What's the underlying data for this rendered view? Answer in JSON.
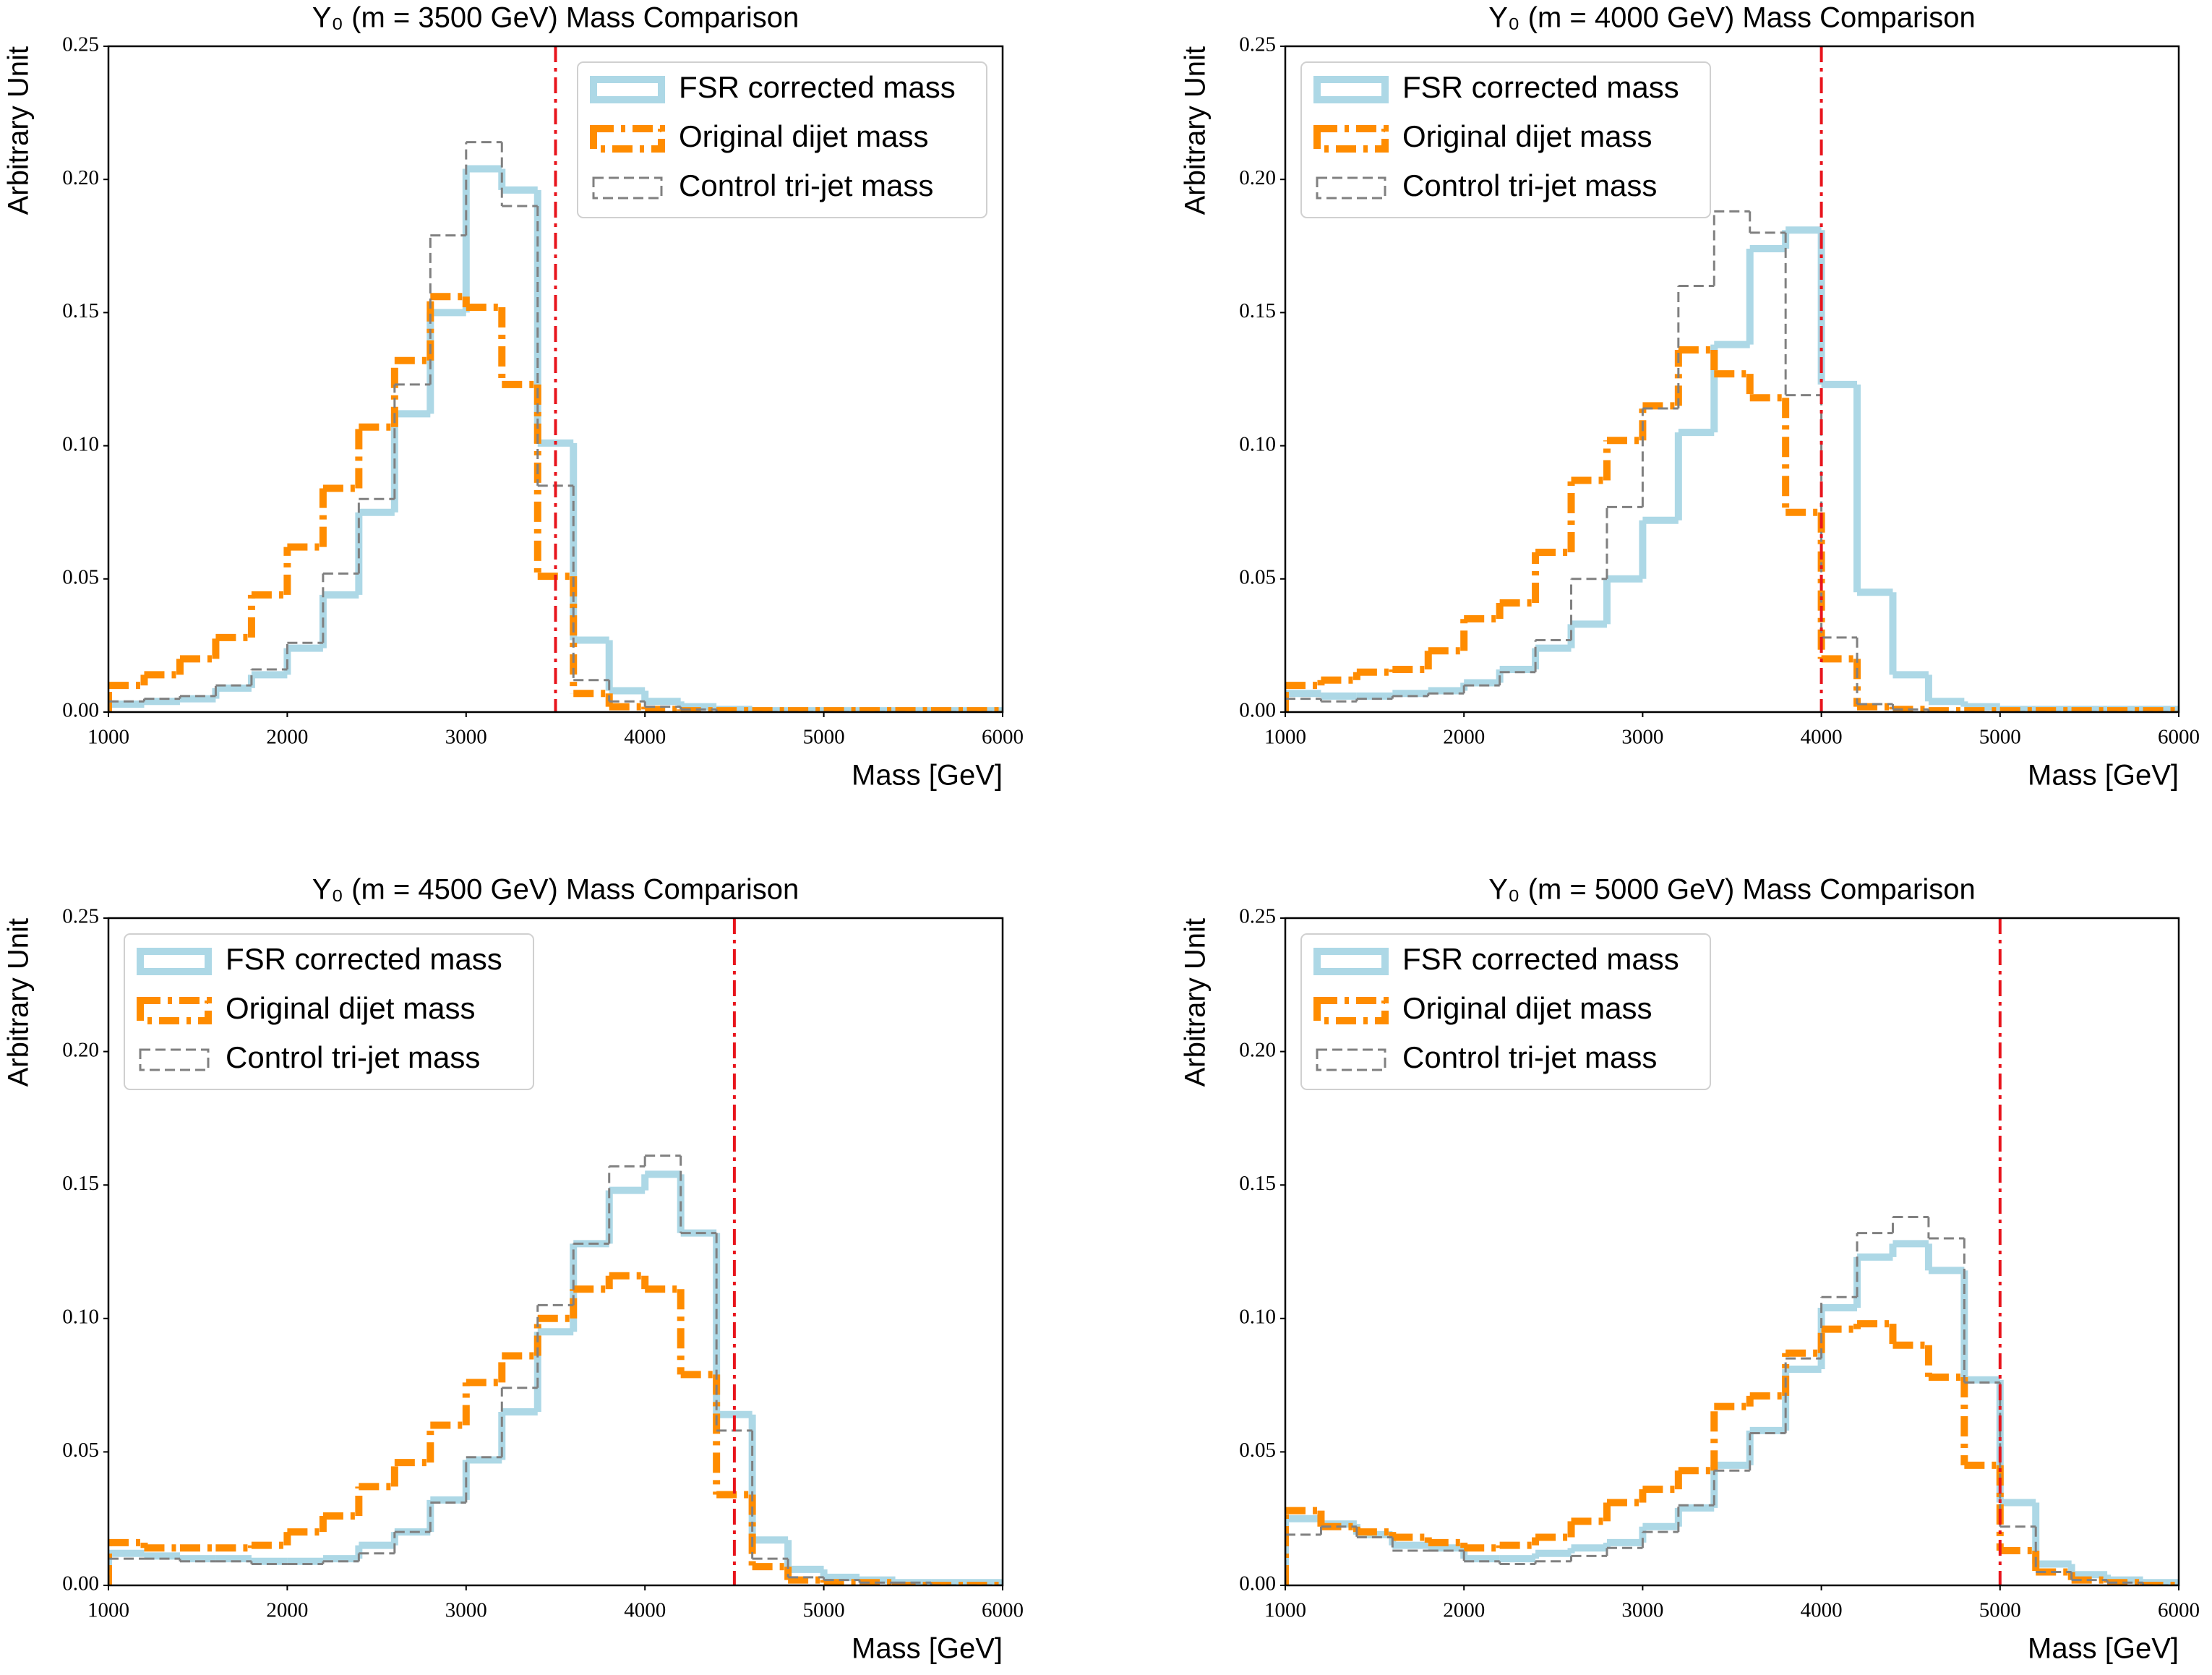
{
  "chart_data": [
    {
      "type": "histogram",
      "title": "Y₀ (m = 3500 GeV) Mass Comparison",
      "xlabel": "Mass [GeV]",
      "ylabel": "Arbitrary Unit",
      "bins": [
        1000,
        1200,
        1400,
        1600,
        1800,
        2000,
        2200,
        2400,
        2600,
        2800,
        3000,
        3200,
        3400,
        3600,
        3800,
        4000,
        4200,
        4400,
        4600,
        4800,
        5000,
        5200,
        5400,
        5600,
        5800,
        6000
      ],
      "xlim": [
        1000,
        6000
      ],
      "xticks": [
        1000,
        2000,
        3000,
        4000,
        5000,
        6000
      ],
      "ylim": [
        0,
        0.25
      ],
      "yticks": [
        {
          "value": 0,
          "label": "0.00"
        },
        {
          "value": 0.05,
          "label": "0.05"
        },
        {
          "value": 0.1,
          "label": "0.10"
        },
        {
          "value": 0.15,
          "label": "0.15"
        },
        {
          "value": 0.2,
          "label": "0.20"
        },
        {
          "value": 0.25,
          "label": "0.25"
        }
      ],
      "vline": 3500,
      "vline_color": "#e8141c",
      "legend": "upper right",
      "series": [
        {
          "name": "FSR corrected mass",
          "color": "#add8e6",
          "linestyle": "solid",
          "values": [
            0.003,
            0.004,
            0.005,
            0.009,
            0.014,
            0.024,
            0.044,
            0.075,
            0.112,
            0.15,
            0.204,
            0.196,
            0.101,
            0.027,
            0.008,
            0.004,
            0.002,
            0.001,
            0.0005,
            0.0005,
            0.0005,
            0.0005,
            0.0005,
            0.0005,
            0.0005
          ]
        },
        {
          "name": "Original dijet mass",
          "color": "#ff8c00",
          "linestyle": "dashdot",
          "values": [
            0.01,
            0.014,
            0.02,
            0.028,
            0.044,
            0.062,
            0.084,
            0.107,
            0.132,
            0.156,
            0.152,
            0.123,
            0.051,
            0.007,
            0.002,
            0.001,
            0.0005,
            0.0005,
            0.0005,
            0.0005,
            0.0005,
            0.0005,
            0.0005,
            0.0005,
            0.0005
          ]
        },
        {
          "name": "Control tri-jet mass",
          "color": "#808080",
          "linestyle": "dashed",
          "values": [
            0.004,
            0.005,
            0.006,
            0.01,
            0.016,
            0.026,
            0.052,
            0.08,
            0.123,
            0.179,
            0.214,
            0.19,
            0.085,
            0.012,
            0.004,
            0.002,
            0.001,
            0,
            0,
            0,
            0,
            0,
            0,
            0,
            0
          ]
        }
      ]
    },
    {
      "type": "histogram",
      "title": "Y₀ (m = 4000 GeV) Mass Comparison",
      "xlabel": "Mass [GeV]",
      "ylabel": "Arbitrary Unit",
      "bins": [
        1000,
        1200,
        1400,
        1600,
        1800,
        2000,
        2200,
        2400,
        2600,
        2800,
        3000,
        3200,
        3400,
        3600,
        3800,
        4000,
        4200,
        4400,
        4600,
        4800,
        5000,
        5200,
        5400,
        5600,
        5800,
        6000
      ],
      "xlim": [
        1000,
        6000
      ],
      "xticks": [
        1000,
        2000,
        3000,
        4000,
        5000,
        6000
      ],
      "ylim": [
        0,
        0.25
      ],
      "yticks": [
        {
          "value": 0,
          "label": "0.00"
        },
        {
          "value": 0.05,
          "label": "0.05"
        },
        {
          "value": 0.1,
          "label": "0.10"
        },
        {
          "value": 0.15,
          "label": "0.15"
        },
        {
          "value": 0.2,
          "label": "0.20"
        },
        {
          "value": 0.25,
          "label": "0.25"
        }
      ],
      "vline": 4000,
      "vline_color": "#e8141c",
      "legend": "upper left",
      "series": [
        {
          "name": "FSR corrected mass",
          "color": "#add8e6",
          "linestyle": "solid",
          "values": [
            0.007,
            0.006,
            0.006,
            0.007,
            0.008,
            0.011,
            0.016,
            0.024,
            0.033,
            0.05,
            0.072,
            0.105,
            0.138,
            0.174,
            0.181,
            0.123,
            0.045,
            0.014,
            0.004,
            0.002,
            0.001,
            0.001,
            0.001,
            0.001,
            0.001
          ]
        },
        {
          "name": "Original dijet mass",
          "color": "#ff8c00",
          "linestyle": "dashdot",
          "values": [
            0.01,
            0.012,
            0.015,
            0.016,
            0.023,
            0.035,
            0.041,
            0.06,
            0.087,
            0.102,
            0.115,
            0.136,
            0.127,
            0.118,
            0.075,
            0.02,
            0.002,
            0.001,
            0.0005,
            0.0005,
            0.0005,
            0.0005,
            0.0005,
            0.0005,
            0.0005
          ]
        },
        {
          "name": "Control tri-jet mass",
          "color": "#808080",
          "linestyle": "dashed",
          "values": [
            0.005,
            0.004,
            0.005,
            0.006,
            0.007,
            0.01,
            0.015,
            0.027,
            0.05,
            0.077,
            0.114,
            0.16,
            0.188,
            0.18,
            0.119,
            0.028,
            0.003,
            0.001,
            0,
            0,
            0,
            0,
            0,
            0,
            0
          ]
        }
      ]
    },
    {
      "type": "histogram",
      "title": "Y₀ (m = 4500 GeV) Mass Comparison",
      "xlabel": "Mass [GeV]",
      "ylabel": "Arbitrary Unit",
      "bins": [
        1000,
        1200,
        1400,
        1600,
        1800,
        2000,
        2200,
        2400,
        2600,
        2800,
        3000,
        3200,
        3400,
        3600,
        3800,
        4000,
        4200,
        4400,
        4600,
        4800,
        5000,
        5200,
        5400,
        5600,
        5800,
        6000
      ],
      "xlim": [
        1000,
        6000
      ],
      "xticks": [
        1000,
        2000,
        3000,
        4000,
        5000,
        6000
      ],
      "ylim": [
        0,
        0.25
      ],
      "yticks": [
        {
          "value": 0,
          "label": "0.00"
        },
        {
          "value": 0.05,
          "label": "0.05"
        },
        {
          "value": 0.1,
          "label": "0.10"
        },
        {
          "value": 0.15,
          "label": "0.15"
        },
        {
          "value": 0.2,
          "label": "0.20"
        },
        {
          "value": 0.25,
          "label": "0.25"
        }
      ],
      "vline": 4500,
      "vline_color": "#e8141c",
      "legend": "upper left",
      "series": [
        {
          "name": "FSR corrected mass",
          "color": "#add8e6",
          "linestyle": "solid",
          "values": [
            0.012,
            0.011,
            0.01,
            0.01,
            0.009,
            0.009,
            0.01,
            0.015,
            0.02,
            0.032,
            0.047,
            0.065,
            0.095,
            0.128,
            0.148,
            0.154,
            0.132,
            0.064,
            0.017,
            0.006,
            0.003,
            0.002,
            0.001,
            0.001,
            0.001
          ]
        },
        {
          "name": "Original dijet mass",
          "color": "#ff8c00",
          "linestyle": "dashdot",
          "values": [
            0.016,
            0.014,
            0.014,
            0.014,
            0.015,
            0.02,
            0.026,
            0.037,
            0.046,
            0.06,
            0.076,
            0.086,
            0.1,
            0.111,
            0.116,
            0.111,
            0.079,
            0.034,
            0.007,
            0.002,
            0.001,
            0.001,
            0,
            0,
            0
          ]
        },
        {
          "name": "Control tri-jet mass",
          "color": "#808080",
          "linestyle": "dashed",
          "values": [
            0.01,
            0.01,
            0.009,
            0.009,
            0.008,
            0.008,
            0.009,
            0.012,
            0.02,
            0.031,
            0.048,
            0.074,
            0.105,
            0.128,
            0.157,
            0.161,
            0.132,
            0.058,
            0.01,
            0.003,
            0.002,
            0.001,
            0.001,
            0,
            0
          ]
        }
      ]
    },
    {
      "type": "histogram",
      "title": "Y₀ (m = 5000 GeV) Mass Comparison",
      "xlabel": "Mass [GeV]",
      "ylabel": "Arbitrary Unit",
      "bins": [
        1000,
        1200,
        1400,
        1600,
        1800,
        2000,
        2200,
        2400,
        2600,
        2800,
        3000,
        3200,
        3400,
        3600,
        3800,
        4000,
        4200,
        4400,
        4600,
        4800,
        5000,
        5200,
        5400,
        5600,
        5800,
        6000
      ],
      "xlim": [
        1000,
        6000
      ],
      "xticks": [
        1000,
        2000,
        3000,
        4000,
        5000,
        6000
      ],
      "ylim": [
        0,
        0.25
      ],
      "yticks": [
        {
          "value": 0,
          "label": "0.00"
        },
        {
          "value": 0.05,
          "label": "0.05"
        },
        {
          "value": 0.1,
          "label": "0.10"
        },
        {
          "value": 0.15,
          "label": "0.15"
        },
        {
          "value": 0.2,
          "label": "0.20"
        },
        {
          "value": 0.25,
          "label": "0.25"
        }
      ],
      "vline": 5000,
      "vline_color": "#e8141c",
      "legend": "upper left",
      "series": [
        {
          "name": "FSR corrected mass",
          "color": "#add8e6",
          "linestyle": "solid",
          "values": [
            0.025,
            0.023,
            0.019,
            0.015,
            0.014,
            0.01,
            0.01,
            0.012,
            0.014,
            0.016,
            0.022,
            0.029,
            0.045,
            0.058,
            0.081,
            0.104,
            0.123,
            0.128,
            0.118,
            0.077,
            0.031,
            0.008,
            0.004,
            0.002,
            0.001
          ]
        },
        {
          "name": "Original dijet mass",
          "color": "#ff8c00",
          "linestyle": "dashdot",
          "values": [
            0.028,
            0.022,
            0.02,
            0.018,
            0.016,
            0.014,
            0.015,
            0.018,
            0.024,
            0.031,
            0.036,
            0.043,
            0.067,
            0.071,
            0.087,
            0.096,
            0.098,
            0.09,
            0.078,
            0.045,
            0.013,
            0.005,
            0.002,
            0.001,
            0
          ]
        },
        {
          "name": "Control tri-jet mass",
          "color": "#808080",
          "linestyle": "dashed",
          "values": [
            0.019,
            0.022,
            0.018,
            0.013,
            0.013,
            0.009,
            0.008,
            0.009,
            0.011,
            0.014,
            0.02,
            0.03,
            0.043,
            0.057,
            0.085,
            0.108,
            0.132,
            0.138,
            0.13,
            0.076,
            0.022,
            0.005,
            0.002,
            0.001,
            0
          ]
        }
      ]
    }
  ]
}
